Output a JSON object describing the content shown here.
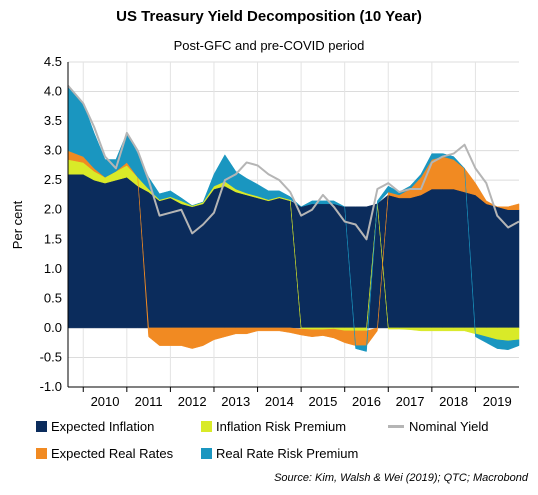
{
  "chart_data": {
    "type": "area",
    "title": "US Treasury Yield Decomposition (10 Year)",
    "subtitle": "Post-GFC and pre-COVID period",
    "ylabel": "Per cent",
    "xlabel": "",
    "ylim": [
      -1.0,
      4.5
    ],
    "xlim": [
      2009.65,
      2020.0
    ],
    "yticks": [
      "4.5",
      "4.0",
      "3.5",
      "3.0",
      "2.5",
      "2.0",
      "1.5",
      "1.0",
      "0.5",
      "0.0",
      "-0.5",
      "-1.0"
    ],
    "xticks": [
      "2010",
      "2011",
      "2012",
      "2013",
      "2014",
      "2015",
      "2016",
      "2017",
      "2018",
      "2019"
    ],
    "grid": true,
    "legend_placement": "bottom",
    "x": [
      2009.65,
      2010.0,
      2010.25,
      2010.5,
      2010.75,
      2011.0,
      2011.25,
      2011.5,
      2011.75,
      2012.0,
      2012.25,
      2012.5,
      2012.75,
      2013.0,
      2013.25,
      2013.5,
      2013.75,
      2014.0,
      2014.25,
      2014.5,
      2014.75,
      2015.0,
      2015.25,
      2015.5,
      2015.75,
      2016.0,
      2016.25,
      2016.5,
      2016.75,
      2017.0,
      2017.25,
      2017.5,
      2017.75,
      2018.0,
      2018.25,
      2018.5,
      2018.75,
      2019.0,
      2019.25,
      2019.5,
      2019.75,
      2020.0
    ],
    "series": [
      {
        "name": "Expected Inflation",
        "color": "#0b2c5c",
        "values": [
          2.6,
          2.6,
          2.5,
          2.45,
          2.5,
          2.55,
          2.4,
          2.3,
          2.15,
          2.2,
          2.1,
          2.05,
          2.1,
          2.35,
          2.4,
          2.3,
          2.25,
          2.2,
          2.15,
          2.2,
          2.15,
          2.05,
          2.1,
          2.1,
          2.1,
          2.05,
          2.05,
          2.05,
          2.1,
          2.25,
          2.2,
          2.2,
          2.25,
          2.35,
          2.35,
          2.35,
          2.3,
          2.25,
          2.1,
          2.05,
          2.0,
          2.0
        ]
      },
      {
        "name": "Inflation Risk Premium",
        "color": "#d9ea28",
        "values": [
          0.25,
          0.2,
          0.15,
          0.1,
          0.15,
          0.2,
          0.15,
          0.05,
          0.02,
          0.02,
          0.05,
          0.02,
          0.03,
          0.05,
          0.08,
          0.05,
          0.03,
          0.03,
          0.02,
          0.02,
          0.02,
          -0.02,
          -0.03,
          -0.03,
          -0.02,
          -0.05,
          -0.05,
          -0.05,
          0.0,
          -0.02,
          -0.02,
          -0.03,
          -0.05,
          -0.05,
          -0.05,
          -0.05,
          -0.05,
          -0.1,
          -0.15,
          -0.2,
          -0.22,
          -0.2
        ]
      },
      {
        "name": "Expected Real Rates",
        "color": "#f18a22",
        "values": [
          0.15,
          0.1,
          0.05,
          0.0,
          0.0,
          0.05,
          0.0,
          -0.15,
          -0.3,
          -0.3,
          -0.3,
          -0.35,
          -0.3,
          -0.2,
          -0.15,
          -0.1,
          -0.1,
          -0.05,
          -0.05,
          -0.05,
          -0.08,
          -0.1,
          -0.12,
          -0.1,
          -0.15,
          -0.2,
          -0.25,
          -0.25,
          -0.05,
          0.05,
          0.05,
          0.15,
          0.3,
          0.5,
          0.55,
          0.5,
          0.4,
          0.2,
          0.05,
          0.0,
          0.05,
          0.1
        ]
      },
      {
        "name": "Real Rate Risk Premium",
        "color": "#1a96c0",
        "values": [
          1.1,
          0.9,
          0.6,
          0.3,
          0.2,
          0.5,
          0.4,
          0.2,
          0.1,
          0.1,
          0.05,
          0.0,
          0.0,
          0.2,
          0.45,
          0.3,
          0.25,
          0.2,
          0.15,
          0.1,
          0.05,
          0.0,
          0.05,
          0.05,
          0.05,
          0.0,
          -0.05,
          -0.1,
          0.05,
          0.1,
          0.05,
          0.05,
          0.05,
          0.1,
          0.05,
          0.05,
          0.0,
          -0.05,
          -0.1,
          -0.15,
          -0.15,
          -0.1
        ]
      },
      {
        "name": "Nominal Yield",
        "color": "#b5b5b5",
        "line": true,
        "values": [
          4.1,
          3.8,
          3.4,
          2.9,
          2.7,
          3.3,
          3.0,
          2.5,
          1.9,
          1.95,
          2.0,
          1.6,
          1.75,
          1.95,
          2.5,
          2.6,
          2.8,
          2.75,
          2.6,
          2.5,
          2.3,
          1.9,
          2.0,
          2.25,
          2.05,
          1.8,
          1.75,
          1.5,
          2.35,
          2.45,
          2.3,
          2.35,
          2.35,
          2.8,
          2.9,
          2.95,
          3.1,
          2.7,
          2.45,
          1.9,
          1.7,
          1.8
        ]
      }
    ]
  },
  "legend": {
    "items": [
      {
        "label": "Expected Inflation",
        "color": "#0b2c5c",
        "kind": "box"
      },
      {
        "label": "Inflation Risk Premium",
        "color": "#d9ea28",
        "kind": "box"
      },
      {
        "label": "Nominal Yield",
        "color": "#b5b5b5",
        "kind": "line"
      },
      {
        "label": "Expected Real Rates",
        "color": "#f18a22",
        "kind": "box"
      },
      {
        "label": "Real Rate Risk Premium",
        "color": "#1a96c0",
        "kind": "box"
      }
    ]
  },
  "source": "Source: Kim, Walsh & Wei (2019); QTC; Macrobond"
}
